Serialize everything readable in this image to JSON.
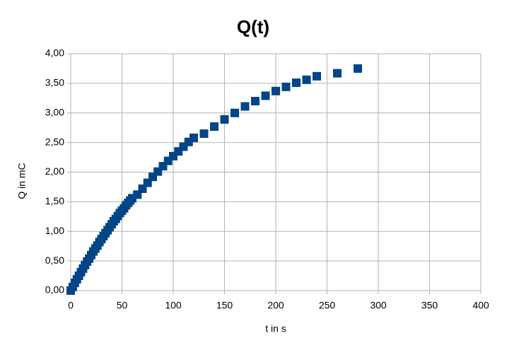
{
  "chart_data": {
    "type": "scatter",
    "title": "Q(t)",
    "x_label": "t in s",
    "y_label": "Q in mC",
    "x": [
      0,
      2,
      4,
      6,
      8,
      10,
      12,
      14,
      16,
      18,
      20,
      22,
      24,
      26,
      28,
      30,
      32,
      34,
      36,
      38,
      40,
      42,
      44,
      46,
      48,
      50,
      52,
      54,
      56,
      58,
      60,
      65,
      70,
      75,
      80,
      85,
      90,
      95,
      100,
      105,
      110,
      115,
      120,
      130,
      140,
      150,
      160,
      170,
      180,
      190,
      200,
      210,
      220,
      230,
      240,
      260,
      280
    ],
    "series": [
      {
        "name": "Q",
        "color": "#004586",
        "values": [
          0,
          0.06,
          0.13,
          0.19,
          0.25,
          0.31,
          0.37,
          0.43,
          0.49,
          0.54,
          0.6,
          0.66,
          0.71,
          0.76,
          0.82,
          0.87,
          0.92,
          0.97,
          1.02,
          1.07,
          1.12,
          1.17,
          1.21,
          1.26,
          1.31,
          1.35,
          1.39,
          1.44,
          1.48,
          1.52,
          1.56,
          1.62,
          1.72,
          1.82,
          1.92,
          2.01,
          2.1,
          2.19,
          2.27,
          2.35,
          2.43,
          2.51,
          2.58,
          2.65,
          2.77,
          2.89,
          3.0,
          3.11,
          3.2,
          3.29,
          3.37,
          3.44,
          3.51,
          3.56,
          3.62,
          3.67,
          3.75
        ]
      }
    ],
    "xlim": [
      0,
      400
    ],
    "xticks": [
      0,
      50,
      100,
      150,
      200,
      250,
      300,
      350,
      400
    ],
    "ylim": [
      0,
      4
    ],
    "yticks": [
      {
        "value": 0,
        "label": "0,00"
      },
      {
        "value": 0.5,
        "label": "0,50"
      },
      {
        "value": 1,
        "label": "1,00"
      },
      {
        "value": 1.5,
        "label": "1,50"
      },
      {
        "value": 2,
        "label": "2,00"
      },
      {
        "value": 2.5,
        "label": "2,50"
      },
      {
        "value": 3,
        "label": "3,00"
      },
      {
        "value": 3.5,
        "label": "3,50"
      },
      {
        "value": 4,
        "label": "4,00"
      }
    ],
    "grid": true
  }
}
